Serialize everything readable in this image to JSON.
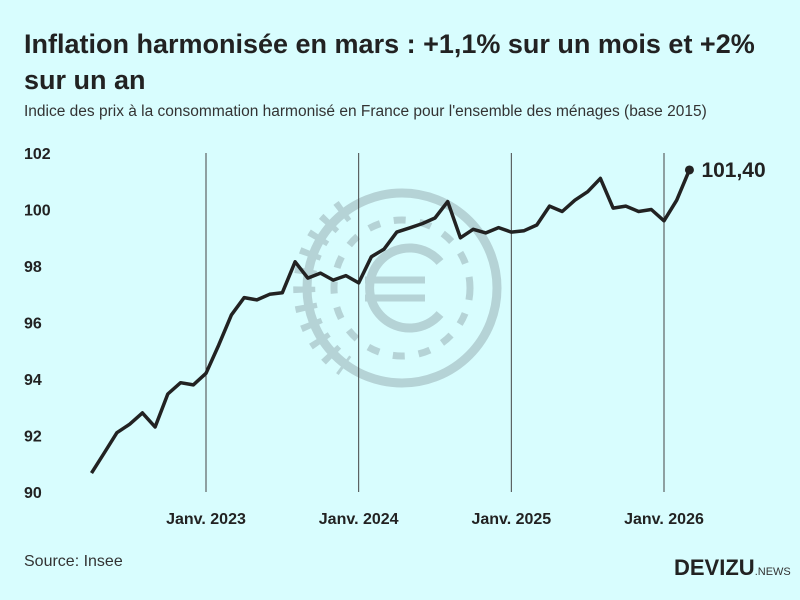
{
  "title": "Inflation harmonisée en mars : +1,1% sur un mois et +2% sur un an",
  "subtitle": "Indice des prix à la consommation harmonisé en France pour l'ensemble des ménages (base 2015)",
  "source": "Source: Insee",
  "logo": {
    "main": "DEVIZU",
    "suffix": ".NEWS"
  },
  "colors": {
    "background": "#d8fdfe",
    "line": "#222222",
    "watermark": "#b5d3d6"
  },
  "watermark_icon": "euro-coin-icon",
  "chart_data": {
    "type": "line",
    "title": "",
    "xlabel": "",
    "ylabel": "",
    "ylim": [
      90,
      102
    ],
    "yticks": [
      90,
      92,
      94,
      96,
      98,
      100,
      102
    ],
    "ytick_labels": [
      "90",
      "92",
      "94",
      "96",
      "98",
      "100",
      "102"
    ],
    "xtick_labels": [
      "Janv. 2023",
      "Janv. 2024",
      "Janv. 2025",
      "Janv. 2026"
    ],
    "xticks": [
      "2023-01",
      "2024-01",
      "2025-01",
      "2026-01"
    ],
    "vertical_grid": true,
    "start": "2022-04",
    "end": "2026-03",
    "values": [
      90.67,
      91.38,
      92.1,
      92.4,
      92.8,
      92.3,
      93.47,
      93.87,
      93.79,
      94.2,
      95.2,
      96.27,
      96.88,
      96.8,
      97.0,
      97.05,
      98.15,
      97.57,
      97.75,
      97.5,
      97.66,
      97.4,
      98.33,
      98.6,
      99.2,
      99.35,
      99.5,
      99.7,
      100.28,
      99.0,
      99.3,
      99.17,
      99.36,
      99.2,
      99.25,
      99.45,
      100.12,
      99.93,
      100.33,
      100.63,
      101.1,
      100.05,
      100.12,
      99.93,
      100.0,
      99.6,
      100.33,
      101.4
    ],
    "annotation": "101,40"
  }
}
